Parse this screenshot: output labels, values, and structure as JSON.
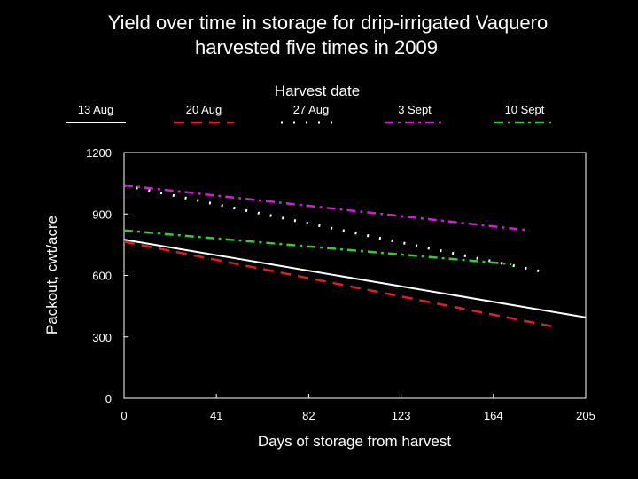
{
  "chart_data": {
    "type": "line",
    "title_lines": [
      "Yield over time in storage for drip-irrigated Vaquero",
      "harvested five times in 2009"
    ],
    "legend_title": "Harvest  date",
    "xlabel": "Days  of  storage  from  harvest",
    "ylabel": "Packout,  cwt/acre",
    "xlim": [
      0,
      205
    ],
    "ylim": [
      0,
      1200
    ],
    "xticks": [
      0,
      41,
      82,
      123,
      164,
      205
    ],
    "yticks": [
      0,
      300,
      600,
      900,
      1200
    ],
    "series": [
      {
        "name": "13 Aug",
        "color": "#ffffff",
        "style": "solid",
        "x": [
          0,
          205
        ],
        "y": [
          775,
          395
        ]
      },
      {
        "name": "20 Aug",
        "color": "#e02020",
        "style": "dashed",
        "x": [
          0,
          193
        ],
        "y": [
          765,
          345
        ]
      },
      {
        "name": "27 Aug",
        "color": "#ffffff",
        "style": "dotted",
        "x": [
          0,
          185
        ],
        "y": [
          1040,
          620
        ]
      },
      {
        "name": "3 Sept",
        "color": "#cc22cc",
        "style": "dashdot",
        "x": [
          0,
          180
        ],
        "y": [
          1040,
          820
        ]
      },
      {
        "name": "10 Sept",
        "color": "#33cc33",
        "style": "dashdot",
        "x": [
          0,
          172
        ],
        "y": [
          820,
          655
        ]
      }
    ]
  }
}
